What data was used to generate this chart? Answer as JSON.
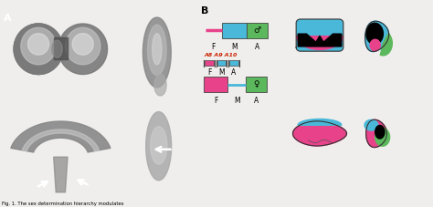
{
  "panel_A_label": "A",
  "panel_B_label": "B",
  "fig_caption": "Fig. 1. The sex determination hierarchy modulates",
  "bg_color": "#f0eeec",
  "blue": "#4ab8d8",
  "pink": "#e8428a",
  "green": "#5cb85c",
  "black": "#0a0a0a",
  "male_symbol": "♂",
  "female_symbol": "♀",
  "A8A9A10_color": "#cc2200",
  "fma_color": "#222222"
}
